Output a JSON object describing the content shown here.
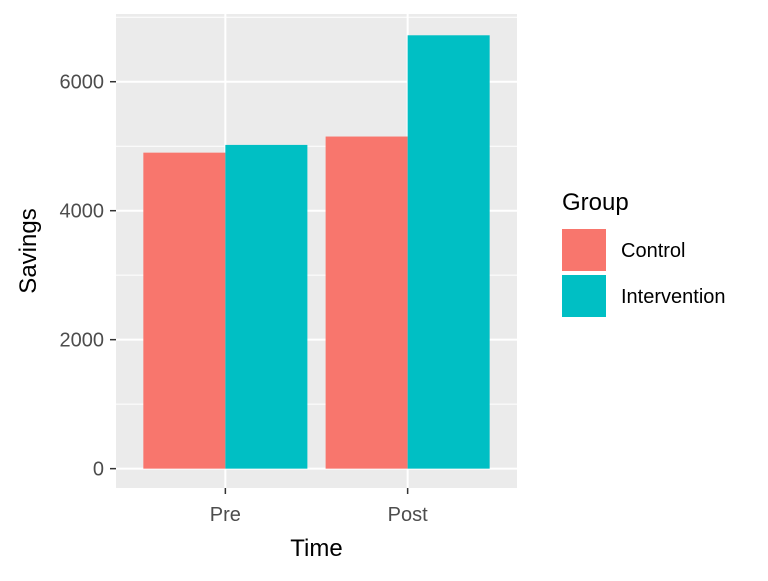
{
  "chart_data": {
    "type": "bar",
    "categories": [
      "Pre",
      "Post"
    ],
    "series": [
      {
        "name": "Control",
        "values": [
          4900,
          5150
        ],
        "color": "#F8766D"
      },
      {
        "name": "Intervention",
        "values": [
          5020,
          6720
        ],
        "color": "#00BFC4"
      }
    ],
    "xlabel": "Time",
    "ylabel": "Savings",
    "ylim": [
      -300,
      7050
    ],
    "yticks": [
      0,
      2000,
      4000,
      6000
    ],
    "y_minor_ticks": [
      1000,
      3000,
      5000,
      7000
    ],
    "legend": {
      "title": "Group",
      "position": "right"
    },
    "grid": true,
    "panel_background": "#EBEBEB",
    "grid_color": "#FFFFFF"
  }
}
